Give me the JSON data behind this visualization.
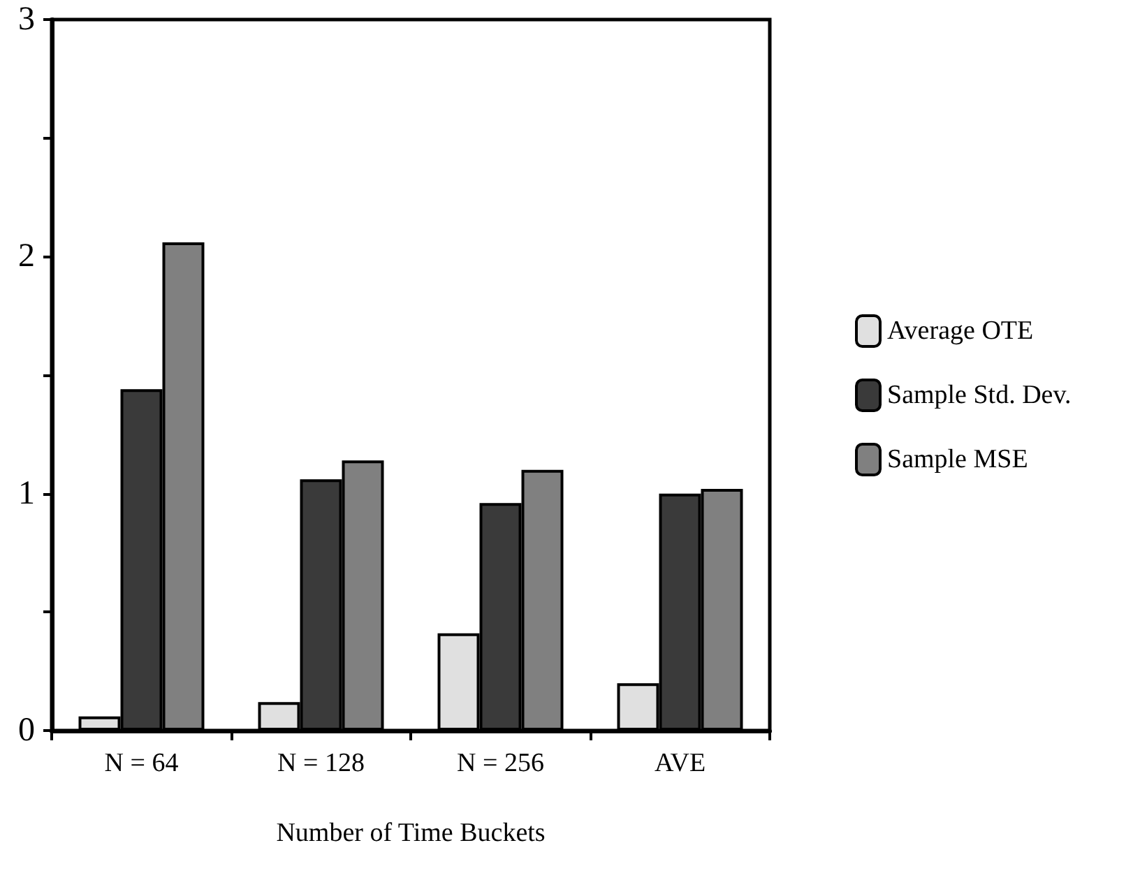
{
  "chart_data": {
    "type": "bar",
    "xlabel": "Number of Time Buckets",
    "categories": [
      "N = 64",
      "N = 128",
      "N = 256",
      "AVE"
    ],
    "series": [
      {
        "name": "Average OTE",
        "color": "#e0e0e0",
        "values": [
          0.06,
          0.12,
          0.41,
          0.2
        ]
      },
      {
        "name": "Sample Std. Dev.",
        "color": "#3a3a3a",
        "values": [
          1.44,
          1.06,
          0.96,
          1.0
        ]
      },
      {
        "name": "Sample MSE",
        "color": "#808080",
        "values": [
          2.06,
          1.14,
          1.1,
          1.02
        ]
      }
    ],
    "ylim": [
      0,
      3
    ],
    "yticks": [
      0,
      {
        "value": 0.5,
        "label": null
      },
      1,
      {
        "value": 1.5,
        "label": null
      },
      2,
      {
        "value": 2.5,
        "label": null
      },
      3
    ],
    "grid": false,
    "legend": "right"
  }
}
